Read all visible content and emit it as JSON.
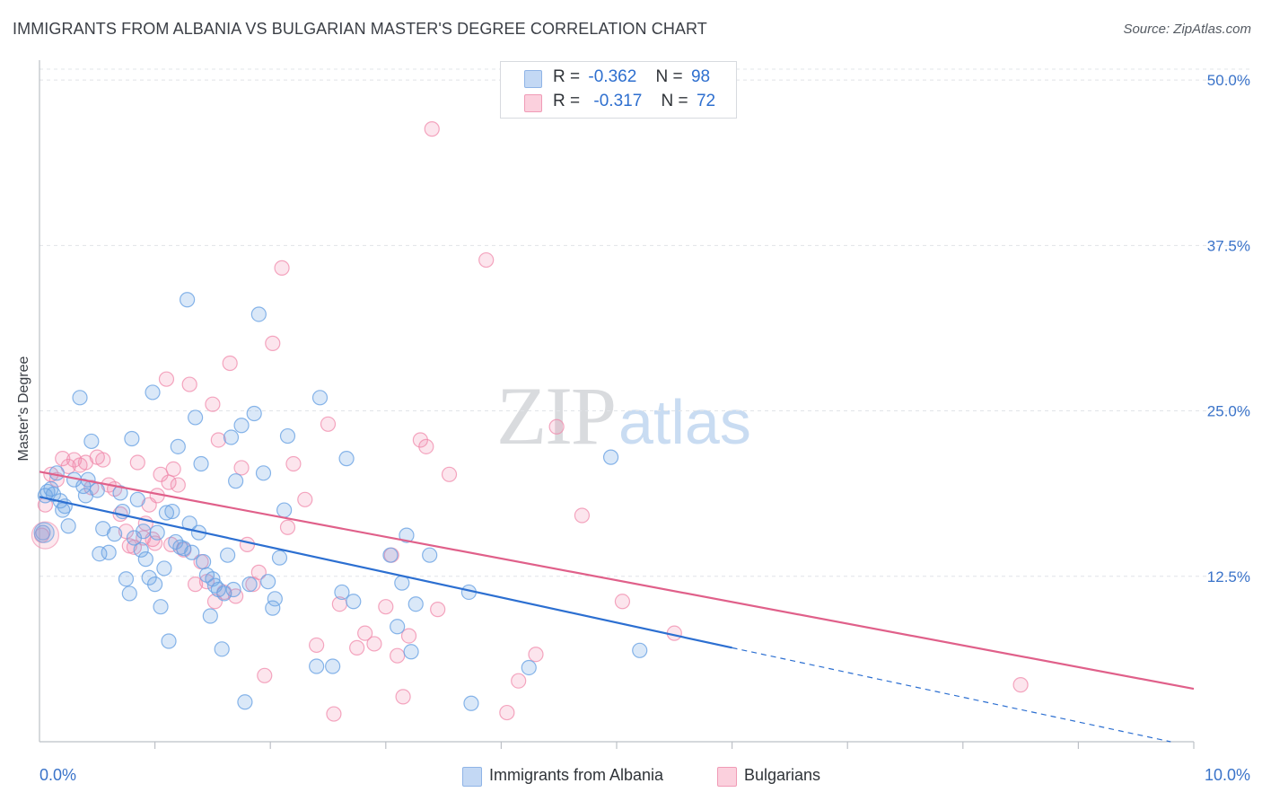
{
  "title": "IMMIGRANTS FROM ALBANIA VS BULGARIAN MASTER'S DEGREE CORRELATION CHART",
  "source": "Source: ZipAtlas.com",
  "watermark": {
    "zip": "ZIP",
    "atlas": "atlas"
  },
  "legend": {
    "rows": [
      {
        "r_label": "R =",
        "r_value": "-0.362",
        "n_label": "N =",
        "n_value": "98",
        "color": "#a9c8f0"
      },
      {
        "r_label": "R =",
        "r_value": "-0.317",
        "n_label": "N =",
        "n_value": "72",
        "color": "#f7b9cc"
      }
    ]
  },
  "bottom_legend": [
    {
      "label": "Immigrants from Albania",
      "color": "#a9c8f0"
    },
    {
      "label": "Bulgarians",
      "color": "#f7b9cc"
    }
  ],
  "chart_data": {
    "type": "scatter",
    "title": "IMMIGRANTS FROM ALBANIA VS BULGARIAN MASTER'S DEGREE CORRELATION CHART",
    "xlabel": "",
    "ylabel": "Master's Degree",
    "xlim": [
      0,
      10
    ],
    "ylim": [
      0,
      51.5
    ],
    "x_tick_labels": [
      "0.0%",
      "10.0%"
    ],
    "y_ticks": [
      12.5,
      25.0,
      37.5,
      50.0
    ],
    "y_tick_labels": [
      "12.5%",
      "25.0%",
      "37.5%",
      "50.0%"
    ],
    "grid": true,
    "series": [
      {
        "name": "Immigrants from Albania",
        "color": "#6aa2e3",
        "line_color": "#2c6fd1",
        "trend": {
          "x0": 0.0,
          "y0": 18.5,
          "x1": 6.0,
          "y1": 7.1,
          "dash_to_x": 9.8,
          "dash_to_y": 0.0
        },
        "points": [
          [
            0.03,
            15.8
          ],
          [
            0.05,
            18.6
          ],
          [
            0.07,
            18.9
          ],
          [
            0.1,
            19.1
          ],
          [
            0.12,
            18.7
          ],
          [
            0.15,
            20.3
          ],
          [
            0.18,
            18.2
          ],
          [
            0.2,
            17.5
          ],
          [
            0.22,
            17.8
          ],
          [
            0.25,
            16.3
          ],
          [
            0.3,
            19.8
          ],
          [
            0.35,
            26.0
          ],
          [
            0.38,
            19.3
          ],
          [
            0.4,
            18.6
          ],
          [
            0.42,
            19.8
          ],
          [
            0.45,
            22.7
          ],
          [
            0.5,
            19.0
          ],
          [
            0.52,
            14.2
          ],
          [
            0.55,
            16.1
          ],
          [
            0.6,
            14.3
          ],
          [
            0.65,
            15.7
          ],
          [
            0.7,
            18.8
          ],
          [
            0.72,
            17.4
          ],
          [
            0.75,
            12.3
          ],
          [
            0.78,
            11.2
          ],
          [
            0.8,
            22.9
          ],
          [
            0.82,
            15.4
          ],
          [
            0.85,
            18.3
          ],
          [
            0.88,
            14.5
          ],
          [
            0.9,
            15.9
          ],
          [
            0.92,
            13.8
          ],
          [
            0.95,
            12.4
          ],
          [
            0.98,
            26.4
          ],
          [
            1.0,
            11.9
          ],
          [
            1.02,
            15.8
          ],
          [
            1.05,
            10.2
          ],
          [
            1.08,
            13.1
          ],
          [
            1.1,
            17.3
          ],
          [
            1.12,
            7.6
          ],
          [
            1.15,
            17.4
          ],
          [
            1.18,
            15.1
          ],
          [
            1.2,
            22.3
          ],
          [
            1.22,
            14.7
          ],
          [
            1.25,
            14.6
          ],
          [
            1.28,
            33.4
          ],
          [
            1.3,
            16.5
          ],
          [
            1.32,
            14.3
          ],
          [
            1.35,
            24.5
          ],
          [
            1.38,
            15.8
          ],
          [
            1.4,
            21.0
          ],
          [
            1.42,
            13.6
          ],
          [
            1.45,
            12.6
          ],
          [
            1.48,
            9.5
          ],
          [
            1.5,
            12.3
          ],
          [
            1.52,
            11.8
          ],
          [
            1.55,
            11.5
          ],
          [
            1.58,
            7.0
          ],
          [
            1.6,
            11.2
          ],
          [
            1.63,
            14.1
          ],
          [
            1.66,
            23.0
          ],
          [
            1.68,
            11.5
          ],
          [
            1.7,
            19.7
          ],
          [
            1.75,
            23.9
          ],
          [
            1.78,
            3.0
          ],
          [
            1.82,
            11.9
          ],
          [
            1.86,
            24.8
          ],
          [
            1.9,
            32.3
          ],
          [
            1.94,
            20.3
          ],
          [
            1.98,
            12.1
          ],
          [
            2.02,
            10.1
          ],
          [
            2.04,
            10.8
          ],
          [
            2.08,
            13.9
          ],
          [
            2.12,
            17.5
          ],
          [
            2.15,
            23.1
          ],
          [
            2.4,
            5.7
          ],
          [
            2.43,
            26.0
          ],
          [
            2.54,
            5.7
          ],
          [
            2.62,
            11.3
          ],
          [
            2.66,
            21.4
          ],
          [
            2.72,
            10.6
          ],
          [
            3.04,
            14.1
          ],
          [
            3.1,
            8.7
          ],
          [
            3.14,
            12.0
          ],
          [
            3.18,
            15.6
          ],
          [
            3.22,
            6.8
          ],
          [
            3.26,
            10.4
          ],
          [
            3.38,
            14.1
          ],
          [
            3.72,
            11.3
          ],
          [
            3.74,
            2.9
          ],
          [
            4.24,
            5.6
          ],
          [
            4.95,
            21.5
          ],
          [
            5.2,
            6.9
          ]
        ]
      },
      {
        "name": "Bulgarians",
        "color": "#f08aab",
        "line_color": "#e0608a",
        "trend": {
          "x0": 0.0,
          "y0": 20.4,
          "x1": 10.0,
          "y1": 4.0
        },
        "points": [
          [
            0.02,
            15.6
          ],
          [
            0.05,
            17.9
          ],
          [
            0.1,
            20.2
          ],
          [
            0.15,
            19.8
          ],
          [
            0.2,
            21.4
          ],
          [
            0.25,
            20.8
          ],
          [
            0.3,
            21.3
          ],
          [
            0.35,
            20.9
          ],
          [
            0.4,
            21.1
          ],
          [
            0.45,
            19.2
          ],
          [
            0.5,
            21.5
          ],
          [
            0.55,
            21.3
          ],
          [
            0.6,
            19.4
          ],
          [
            0.65,
            19.1
          ],
          [
            0.7,
            17.2
          ],
          [
            0.75,
            15.9
          ],
          [
            0.78,
            14.8
          ],
          [
            0.82,
            14.7
          ],
          [
            0.85,
            21.1
          ],
          [
            0.9,
            15.4
          ],
          [
            0.92,
            16.5
          ],
          [
            0.95,
            17.9
          ],
          [
            0.98,
            15.3
          ],
          [
            1.0,
            15.0
          ],
          [
            1.02,
            18.6
          ],
          [
            1.05,
            20.2
          ],
          [
            1.1,
            27.4
          ],
          [
            1.12,
            19.6
          ],
          [
            1.14,
            14.9
          ],
          [
            1.16,
            20.6
          ],
          [
            1.2,
            19.4
          ],
          [
            1.25,
            14.5
          ],
          [
            1.3,
            27.0
          ],
          [
            1.35,
            11.9
          ],
          [
            1.4,
            13.6
          ],
          [
            1.45,
            12.1
          ],
          [
            1.5,
            25.5
          ],
          [
            1.52,
            10.6
          ],
          [
            1.55,
            22.8
          ],
          [
            1.6,
            11.3
          ],
          [
            1.65,
            28.6
          ],
          [
            1.7,
            11.0
          ],
          [
            1.75,
            20.7
          ],
          [
            1.8,
            14.9
          ],
          [
            1.85,
            11.9
          ],
          [
            1.9,
            12.8
          ],
          [
            1.95,
            5.0
          ],
          [
            2.02,
            30.1
          ],
          [
            2.1,
            35.8
          ],
          [
            2.15,
            16.2
          ],
          [
            2.2,
            21.0
          ],
          [
            2.3,
            18.3
          ],
          [
            2.4,
            7.3
          ],
          [
            2.5,
            24.0
          ],
          [
            2.55,
            2.1
          ],
          [
            2.6,
            10.4
          ],
          [
            2.75,
            7.1
          ],
          [
            2.82,
            8.2
          ],
          [
            2.9,
            7.4
          ],
          [
            3.0,
            10.2
          ],
          [
            3.05,
            14.1
          ],
          [
            3.1,
            6.5
          ],
          [
            3.15,
            3.4
          ],
          [
            3.2,
            8.0
          ],
          [
            3.3,
            22.8
          ],
          [
            3.35,
            22.3
          ],
          [
            3.45,
            10.0
          ],
          [
            3.55,
            20.2
          ],
          [
            3.87,
            36.4
          ],
          [
            4.05,
            2.2
          ],
          [
            4.15,
            4.6
          ],
          [
            4.3,
            6.6
          ],
          [
            4.48,
            23.8
          ],
          [
            4.7,
            17.1
          ],
          [
            5.05,
            10.6
          ],
          [
            5.5,
            8.2
          ],
          [
            8.5,
            4.3
          ],
          [
            3.4,
            46.3
          ]
        ]
      }
    ]
  }
}
